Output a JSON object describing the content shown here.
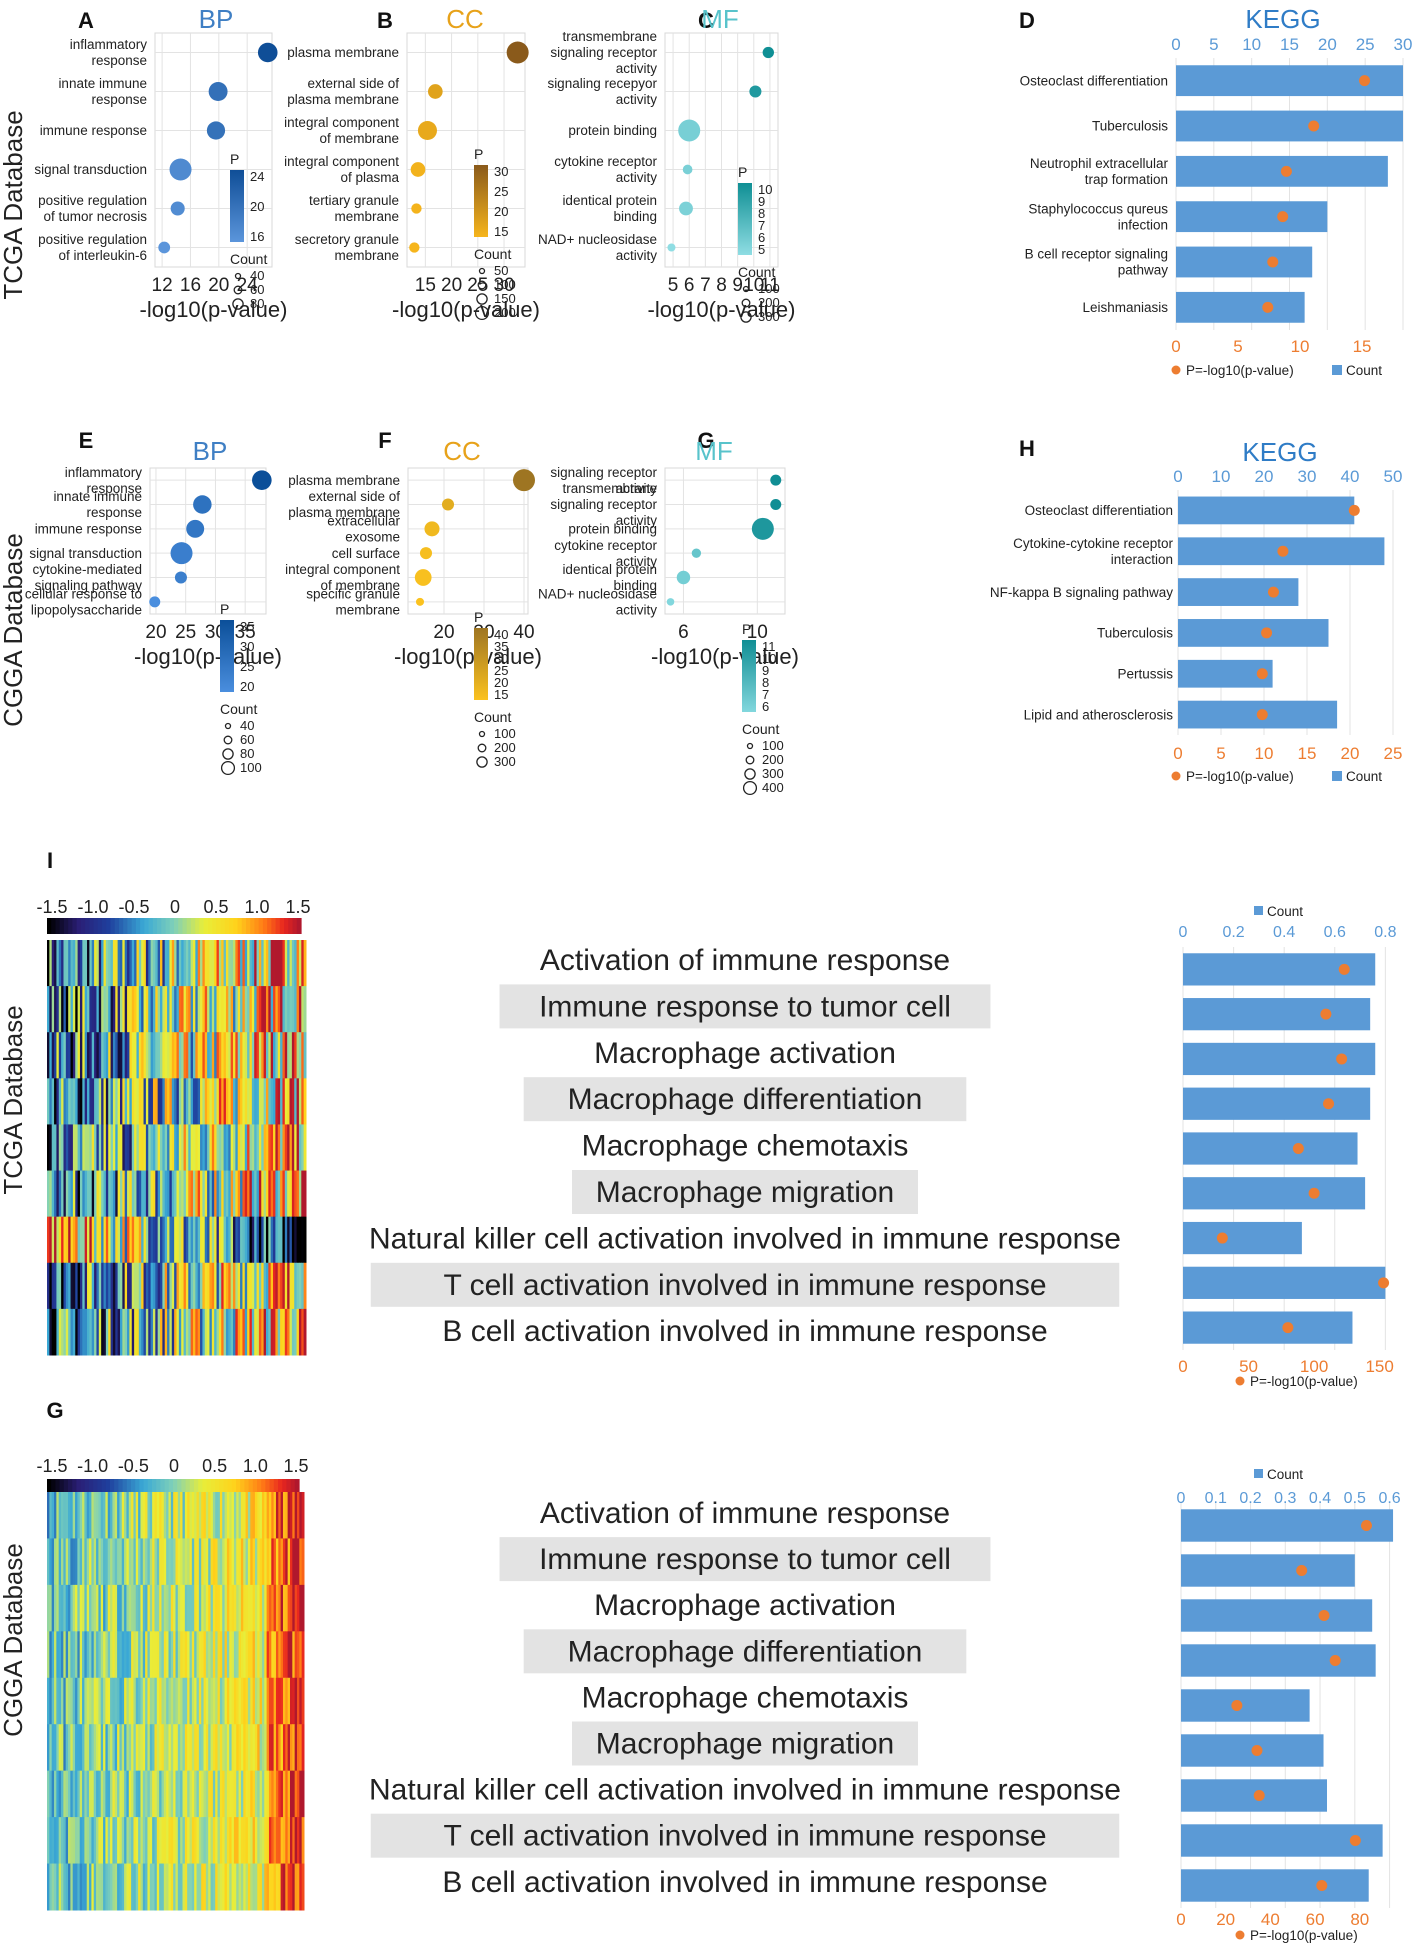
{
  "colors": {
    "bp": "#3f7fc4",
    "cc": "#e7a21a",
    "mf": "#58c3cb",
    "kegg": "#2f7cc6",
    "bar": "#5b9ad6",
    "dot": "#ed7d31",
    "grid": "#e3e3e3",
    "label_bg": "#e3e3e3"
  },
  "row_labels": [
    "TCGA Database",
    "CGGA Database",
    "TCGA Database",
    "CGGA Database"
  ],
  "common": {
    "xlabel": "-log10(p-value)",
    "color_legend_title": "P",
    "size_legend_title": "Count",
    "legend_p": "P=-log10(p-value)",
    "legend_count": "Count"
  },
  "chart_data": [
    {
      "id": "A",
      "type": "scatter",
      "title": "BP",
      "terms": [
        "inflammatory response",
        "innate immune response",
        "immune response",
        "signal transduction",
        "positive regulation of tumor necrosis",
        "positive regulation of interleukin-6"
      ],
      "x": [
        26.9,
        19.9,
        19.6,
        14.6,
        14.2,
        12.3
      ],
      "counts": [
        60,
        55,
        50,
        80,
        25,
        15
      ],
      "xlim": [
        11,
        27.5
      ],
      "xticks": [
        "12",
        "16",
        "20",
        "24"
      ],
      "xtick_values": [
        12,
        16,
        20,
        24
      ],
      "color_ticks": [
        "24",
        "20",
        "16"
      ],
      "size_ticks": [
        "40",
        "60",
        "80"
      ]
    },
    {
      "id": "B",
      "type": "scatter",
      "title": "CC",
      "terms": [
        "plasma membrane",
        "external side of plasma membrane",
        "integral component of membrane",
        "integral component of plasma",
        "tertiary granule membrane",
        "secretory granule membrane"
      ],
      "x": [
        32.6,
        16.9,
        15.4,
        13.6,
        13.3,
        12.9
      ],
      "counts": [
        200,
        70,
        140,
        70,
        25,
        25
      ],
      "xlim": [
        11.5,
        34
      ],
      "xticks": [
        "15",
        "20",
        "25",
        "30"
      ],
      "xtick_values": [
        15,
        20,
        25,
        30
      ],
      "color_ticks": [
        "30",
        "25",
        "20",
        "15"
      ],
      "size_ticks": [
        "50",
        "100",
        "150",
        "200"
      ]
    },
    {
      "id": "C",
      "type": "scatter",
      "title": "MF",
      "terms": [
        "transmembrane signaling receptor activity",
        "signaling recepyor activity",
        "protein binding",
        "cytokine receptor activity",
        "identical protein binding",
        "NAD+ nucleosidase activity"
      ],
      "x": [
        10.9,
        10.1,
        6.0,
        5.9,
        5.8,
        4.9
      ],
      "counts": [
        50,
        60,
        300,
        30,
        90,
        15
      ],
      "xlim": [
        4.5,
        11.5
      ],
      "xticks": [
        "5",
        "6",
        "7",
        "8",
        "9",
        "10",
        "11"
      ],
      "xtick_values": [
        5,
        6,
        7,
        8,
        9,
        10,
        11
      ],
      "color_ticks": [
        "10",
        "9",
        "8",
        "7",
        "6",
        "5"
      ],
      "size_ticks": [
        "100",
        "200",
        "300"
      ]
    },
    {
      "id": "D",
      "type": "bar",
      "title": "KEGG",
      "terms": [
        "Osteoclast differentiation",
        "Tuberculosis",
        "Neutrophil extracellular trap formation",
        "Staphylococcus qureus infection",
        "B cell receptor signaling pathway",
        "Leishmaniasis"
      ],
      "counts": [
        30,
        30,
        28,
        20,
        18,
        17
      ],
      "p_values": [
        15.2,
        11.1,
        8.9,
        8.6,
        7.8,
        7.4
      ],
      "count_ticks": [
        0,
        5,
        10,
        15,
        20,
        25,
        30
      ],
      "count_max": 30,
      "p_ticks": [
        0,
        5,
        10,
        15
      ],
      "p_max": 18.3
    },
    {
      "id": "E",
      "type": "scatter",
      "title": "BP",
      "terms": [
        "inflammatory response",
        "innate immune response",
        "immune response",
        "signal transduction",
        "cytokine-mediated signaling pathway",
        "cellular response to lipopolysaccharide"
      ],
      "x": [
        37.8,
        27.8,
        26.6,
        24.3,
        24.2,
        19.8
      ],
      "counts": [
        75,
        65,
        60,
        100,
        20,
        15
      ],
      "xlim": [
        19,
        38.5
      ],
      "xticks": [
        "20",
        "25",
        "30",
        "35"
      ],
      "xtick_values": [
        20,
        25,
        30,
        35
      ],
      "color_ticks": [
        "35",
        "30",
        "25",
        "20"
      ],
      "size_ticks": [
        "40",
        "60",
        "80",
        "100"
      ]
    },
    {
      "id": "F",
      "type": "scatter",
      "title": "CC",
      "terms": [
        "plasma membrane",
        "external side of plasma membrane",
        "extracellular exosome",
        "cell surface",
        "integral component of membrane",
        "specific granule membrane"
      ],
      "x": [
        40.0,
        21.0,
        17.0,
        15.5,
        14.8,
        14.0
      ],
      "counts": [
        400,
        80,
        150,
        80,
        200,
        20
      ],
      "xlim": [
        11,
        41
      ],
      "xticks": [
        "20",
        "30",
        "40"
      ],
      "xtick_values": [
        20,
        30,
        40
      ],
      "color_ticks": [
        "40",
        "35",
        "30",
        "25",
        "20",
        "15"
      ],
      "size_ticks": [
        "100",
        "200",
        "300"
      ]
    },
    {
      "id": "G",
      "type": "scatter",
      "title": "MF",
      "terms": [
        "signaling receptor activity",
        "transmembrane signaling receptor activity",
        "protein binding",
        "cytokine receptor activity",
        "identical protein binding",
        "NAD+ nucleosidase activity"
      ],
      "x": [
        11.0,
        11.0,
        10.3,
        6.7,
        6.0,
        5.3
      ],
      "counts": [
        60,
        60,
        400,
        35,
        110,
        15
      ],
      "xlim": [
        5,
        11.5
      ],
      "xticks": [
        "6",
        "10"
      ],
      "xtick_values": [
        6,
        10
      ],
      "color_ticks": [
        "11",
        "10",
        "9",
        "8",
        "7",
        "6"
      ],
      "size_ticks": [
        "100",
        "200",
        "300",
        "400"
      ]
    },
    {
      "id": "H",
      "type": "bar",
      "title": "KEGG",
      "terms": [
        "Osteoclast differentiation",
        "Cytokine-cytokine receptor interaction",
        "NF-kappa B signaling pathway",
        "Tuberculosis",
        "Pertussis",
        "Lipid and atherosclerosis"
      ],
      "counts": [
        41,
        48,
        28,
        35,
        22,
        37
      ],
      "p_values": [
        20.5,
        12.2,
        11.1,
        10.3,
        9.8,
        9.8
      ],
      "count_ticks": [
        0,
        10,
        20,
        30,
        40,
        50
      ],
      "count_max": 50,
      "p_ticks": [
        0,
        5,
        10,
        15,
        20,
        25
      ],
      "p_max": 25
    },
    {
      "id": "I",
      "type": "heatmap",
      "colorbar_ticks": [
        "-1.5",
        "-1.0",
        "-0.5",
        "0",
        "0.5",
        "1.0",
        "1.5"
      ],
      "terms": [
        "Activation of immune response",
        "Immune response to tumor cell",
        "Macrophage activation",
        "Macrophage differentiation",
        "Macrophage chemotaxis",
        "Macrophage migration",
        "Natural killer cell activation involved in immune response",
        "T cell activation involved in immune response",
        "B cell activation involved in immune response"
      ],
      "count_ticks": [
        "0",
        "0.2",
        "0.4",
        "0.6",
        "0.8"
      ],
      "count_max": 0.85,
      "counts": [
        0.76,
        0.74,
        0.76,
        0.74,
        0.69,
        0.72,
        0.47,
        0.8,
        0.67
      ],
      "p_ticks": [
        "0",
        "50",
        "100",
        "150"
      ],
      "p_max": 164,
      "p_values": [
        123,
        109,
        121,
        111,
        88,
        100,
        30,
        153,
        80
      ]
    },
    {
      "id": "G",
      "type": "heatmap",
      "colorbar_ticks": [
        "-1.5",
        "-1.0",
        "-0.5",
        "0",
        "0.5",
        "1.0",
        "1.5"
      ],
      "terms": [
        "Activation of immune response",
        "Immune response to tumor cell",
        "Macrophage activation",
        "Macrophage differentiation",
        "Macrophage chemotaxis",
        "Macrophage migration",
        "Natural killer cell activation involved in immune response",
        "T cell activation involved in immune response",
        "B cell activation involved in immune response"
      ],
      "count_ticks": [
        "0",
        "0.1",
        "0.2",
        "0.3",
        "0.4",
        "0.5",
        "0.6"
      ],
      "count_max": 0.63,
      "counts": [
        0.61,
        0.5,
        0.55,
        0.56,
        0.37,
        0.41,
        0.42,
        0.58,
        0.54
      ],
      "p_ticks": [
        "0",
        "20",
        "40",
        "60",
        "80"
      ],
      "p_max": 98,
      "p_values": [
        83,
        54,
        64,
        69,
        25,
        34,
        35,
        78,
        63
      ]
    }
  ]
}
